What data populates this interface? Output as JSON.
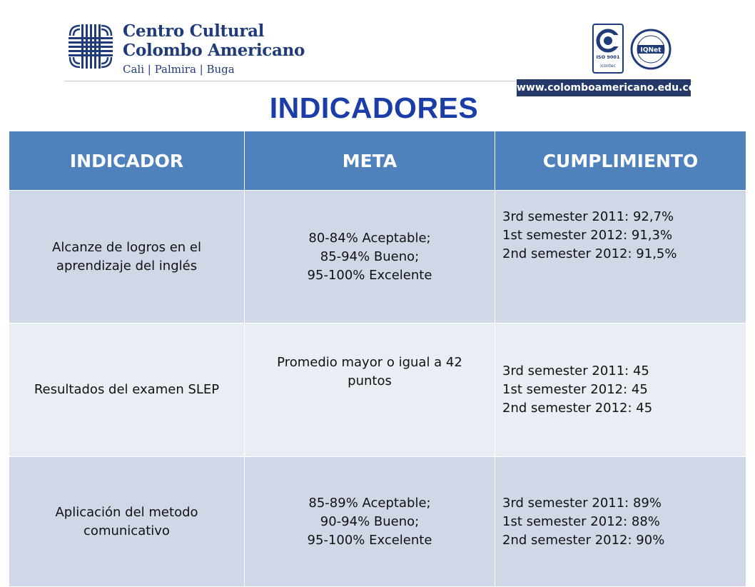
{
  "header": {
    "org_line1": "Centro Cultural",
    "org_line2": "Colombo Americano",
    "org_line3": "Cali | Palmira | Buga",
    "website": "www.colomboamericano.edu.co",
    "iso_label": "ISO 9001",
    "icontec_label": "icontec",
    "iqnet_label": "IQNet"
  },
  "title": "INDICADORES",
  "table": {
    "headers": [
      "INDICADOR",
      "META",
      "CUMPLIMIENTO"
    ],
    "rows": [
      {
        "indicador": [
          "Alcanze de logros en el",
          "aprendizaje del inglés"
        ],
        "meta": [
          "80-84% Aceptable;",
          "85-94% Bueno;",
          "95-100% Excelente"
        ],
        "cumplimiento": [
          "3rd semester 2011: 92,7%",
          "1st semester 2012: 91,3%",
          "2nd semester 2012: 91,5%"
        ]
      },
      {
        "indicador": [
          "Resultados del examen SLEP"
        ],
        "meta": [
          "Promedio mayor o igual a 42",
          "puntos"
        ],
        "cumplimiento": [
          "3rd semester 2011: 45",
          "1st semester 2012: 45",
          "2nd semester 2012: 45"
        ]
      },
      {
        "indicador": [
          "Aplicación del metodo",
          "comunicativo"
        ],
        "meta": [
          "85-89% Aceptable;",
          "90-94% Bueno;",
          "95-100% Excelente"
        ],
        "cumplimiento": [
          "3rd semester 2011: 89%",
          "1st semester 2012: 88%",
          "2nd semester 2012: 90%"
        ]
      }
    ]
  },
  "colors": {
    "brand_navy": "#1f3b7a",
    "title_blue": "#1a3da8",
    "header_blue": "#4f81bd",
    "row_dark": "#d0d8e8",
    "row_light": "#e9edf4"
  }
}
